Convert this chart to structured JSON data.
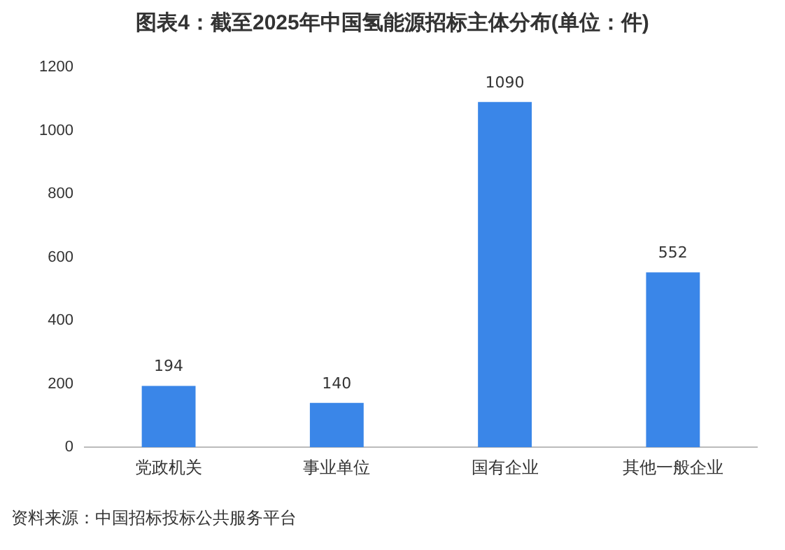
{
  "chart_data": {
    "type": "bar",
    "title": "图表4：截至2025年中国氢能源招标主体分布(单位：件)",
    "categories": [
      "党政机关",
      "事业单位",
      "国有企业",
      "其他一般企业"
    ],
    "values": [
      194,
      140,
      1090,
      552
    ],
    "color": "#3a86e8",
    "ylim": [
      0,
      1200
    ],
    "yticks": [
      0,
      200,
      400,
      600,
      800,
      1000,
      1200
    ],
    "grid": false,
    "data_labels": true,
    "annotations": [
      "资料来源：中国招标投标公共服务平台"
    ]
  }
}
